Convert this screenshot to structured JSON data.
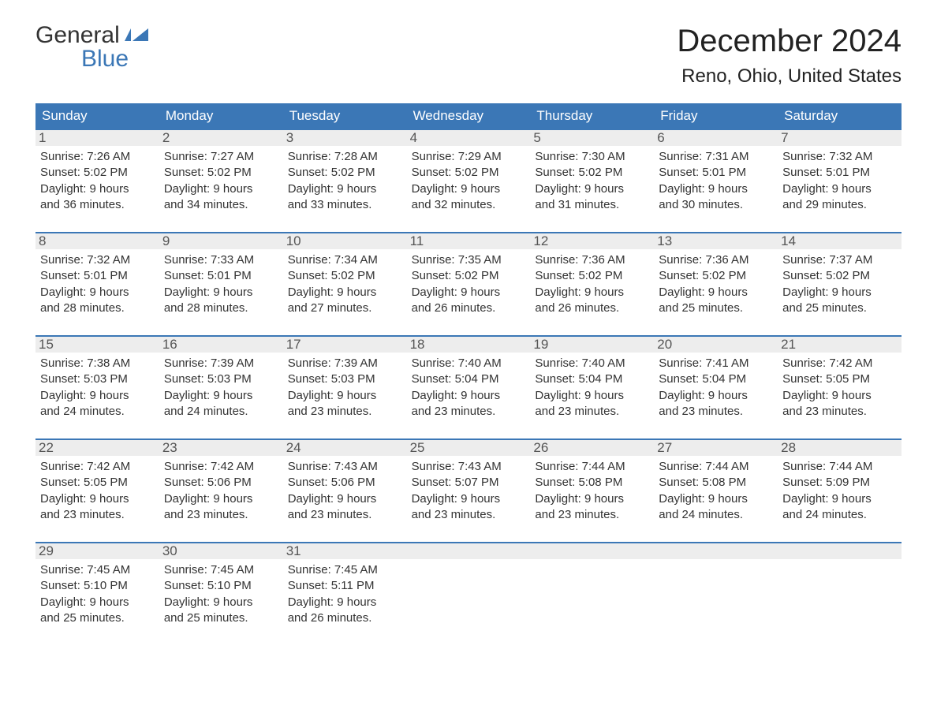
{
  "colors": {
    "accent": "#3b77b6",
    "header_bg": "#3b77b6",
    "header_text": "#ffffff",
    "daynum_bg": "#ededed",
    "text": "#333333",
    "background": "#ffffff"
  },
  "logo": {
    "line1": "General",
    "line2": "Blue"
  },
  "title": "December 2024",
  "location": "Reno, Ohio, United States",
  "weekday_headers": [
    "Sunday",
    "Monday",
    "Tuesday",
    "Wednesday",
    "Thursday",
    "Friday",
    "Saturday"
  ],
  "weeks": [
    [
      {
        "n": "1",
        "sr": "Sunrise: 7:26 AM",
        "ss": "Sunset: 5:02 PM",
        "d1": "Daylight: 9 hours",
        "d2": "and 36 minutes."
      },
      {
        "n": "2",
        "sr": "Sunrise: 7:27 AM",
        "ss": "Sunset: 5:02 PM",
        "d1": "Daylight: 9 hours",
        "d2": "and 34 minutes."
      },
      {
        "n": "3",
        "sr": "Sunrise: 7:28 AM",
        "ss": "Sunset: 5:02 PM",
        "d1": "Daylight: 9 hours",
        "d2": "and 33 minutes."
      },
      {
        "n": "4",
        "sr": "Sunrise: 7:29 AM",
        "ss": "Sunset: 5:02 PM",
        "d1": "Daylight: 9 hours",
        "d2": "and 32 minutes."
      },
      {
        "n": "5",
        "sr": "Sunrise: 7:30 AM",
        "ss": "Sunset: 5:02 PM",
        "d1": "Daylight: 9 hours",
        "d2": "and 31 minutes."
      },
      {
        "n": "6",
        "sr": "Sunrise: 7:31 AM",
        "ss": "Sunset: 5:01 PM",
        "d1": "Daylight: 9 hours",
        "d2": "and 30 minutes."
      },
      {
        "n": "7",
        "sr": "Sunrise: 7:32 AM",
        "ss": "Sunset: 5:01 PM",
        "d1": "Daylight: 9 hours",
        "d2": "and 29 minutes."
      }
    ],
    [
      {
        "n": "8",
        "sr": "Sunrise: 7:32 AM",
        "ss": "Sunset: 5:01 PM",
        "d1": "Daylight: 9 hours",
        "d2": "and 28 minutes."
      },
      {
        "n": "9",
        "sr": "Sunrise: 7:33 AM",
        "ss": "Sunset: 5:01 PM",
        "d1": "Daylight: 9 hours",
        "d2": "and 28 minutes."
      },
      {
        "n": "10",
        "sr": "Sunrise: 7:34 AM",
        "ss": "Sunset: 5:02 PM",
        "d1": "Daylight: 9 hours",
        "d2": "and 27 minutes."
      },
      {
        "n": "11",
        "sr": "Sunrise: 7:35 AM",
        "ss": "Sunset: 5:02 PM",
        "d1": "Daylight: 9 hours",
        "d2": "and 26 minutes."
      },
      {
        "n": "12",
        "sr": "Sunrise: 7:36 AM",
        "ss": "Sunset: 5:02 PM",
        "d1": "Daylight: 9 hours",
        "d2": "and 26 minutes."
      },
      {
        "n": "13",
        "sr": "Sunrise: 7:36 AM",
        "ss": "Sunset: 5:02 PM",
        "d1": "Daylight: 9 hours",
        "d2": "and 25 minutes."
      },
      {
        "n": "14",
        "sr": "Sunrise: 7:37 AM",
        "ss": "Sunset: 5:02 PM",
        "d1": "Daylight: 9 hours",
        "d2": "and 25 minutes."
      }
    ],
    [
      {
        "n": "15",
        "sr": "Sunrise: 7:38 AM",
        "ss": "Sunset: 5:03 PM",
        "d1": "Daylight: 9 hours",
        "d2": "and 24 minutes."
      },
      {
        "n": "16",
        "sr": "Sunrise: 7:39 AM",
        "ss": "Sunset: 5:03 PM",
        "d1": "Daylight: 9 hours",
        "d2": "and 24 minutes."
      },
      {
        "n": "17",
        "sr": "Sunrise: 7:39 AM",
        "ss": "Sunset: 5:03 PM",
        "d1": "Daylight: 9 hours",
        "d2": "and 23 minutes."
      },
      {
        "n": "18",
        "sr": "Sunrise: 7:40 AM",
        "ss": "Sunset: 5:04 PM",
        "d1": "Daylight: 9 hours",
        "d2": "and 23 minutes."
      },
      {
        "n": "19",
        "sr": "Sunrise: 7:40 AM",
        "ss": "Sunset: 5:04 PM",
        "d1": "Daylight: 9 hours",
        "d2": "and 23 minutes."
      },
      {
        "n": "20",
        "sr": "Sunrise: 7:41 AM",
        "ss": "Sunset: 5:04 PM",
        "d1": "Daylight: 9 hours",
        "d2": "and 23 minutes."
      },
      {
        "n": "21",
        "sr": "Sunrise: 7:42 AM",
        "ss": "Sunset: 5:05 PM",
        "d1": "Daylight: 9 hours",
        "d2": "and 23 minutes."
      }
    ],
    [
      {
        "n": "22",
        "sr": "Sunrise: 7:42 AM",
        "ss": "Sunset: 5:05 PM",
        "d1": "Daylight: 9 hours",
        "d2": "and 23 minutes."
      },
      {
        "n": "23",
        "sr": "Sunrise: 7:42 AM",
        "ss": "Sunset: 5:06 PM",
        "d1": "Daylight: 9 hours",
        "d2": "and 23 minutes."
      },
      {
        "n": "24",
        "sr": "Sunrise: 7:43 AM",
        "ss": "Sunset: 5:06 PM",
        "d1": "Daylight: 9 hours",
        "d2": "and 23 minutes."
      },
      {
        "n": "25",
        "sr": "Sunrise: 7:43 AM",
        "ss": "Sunset: 5:07 PM",
        "d1": "Daylight: 9 hours",
        "d2": "and 23 minutes."
      },
      {
        "n": "26",
        "sr": "Sunrise: 7:44 AM",
        "ss": "Sunset: 5:08 PM",
        "d1": "Daylight: 9 hours",
        "d2": "and 23 minutes."
      },
      {
        "n": "27",
        "sr": "Sunrise: 7:44 AM",
        "ss": "Sunset: 5:08 PM",
        "d1": "Daylight: 9 hours",
        "d2": "and 24 minutes."
      },
      {
        "n": "28",
        "sr": "Sunrise: 7:44 AM",
        "ss": "Sunset: 5:09 PM",
        "d1": "Daylight: 9 hours",
        "d2": "and 24 minutes."
      }
    ],
    [
      {
        "n": "29",
        "sr": "Sunrise: 7:45 AM",
        "ss": "Sunset: 5:10 PM",
        "d1": "Daylight: 9 hours",
        "d2": "and 25 minutes."
      },
      {
        "n": "30",
        "sr": "Sunrise: 7:45 AM",
        "ss": "Sunset: 5:10 PM",
        "d1": "Daylight: 9 hours",
        "d2": "and 25 minutes."
      },
      {
        "n": "31",
        "sr": "Sunrise: 7:45 AM",
        "ss": "Sunset: 5:11 PM",
        "d1": "Daylight: 9 hours",
        "d2": "and 26 minutes."
      },
      null,
      null,
      null,
      null
    ]
  ]
}
